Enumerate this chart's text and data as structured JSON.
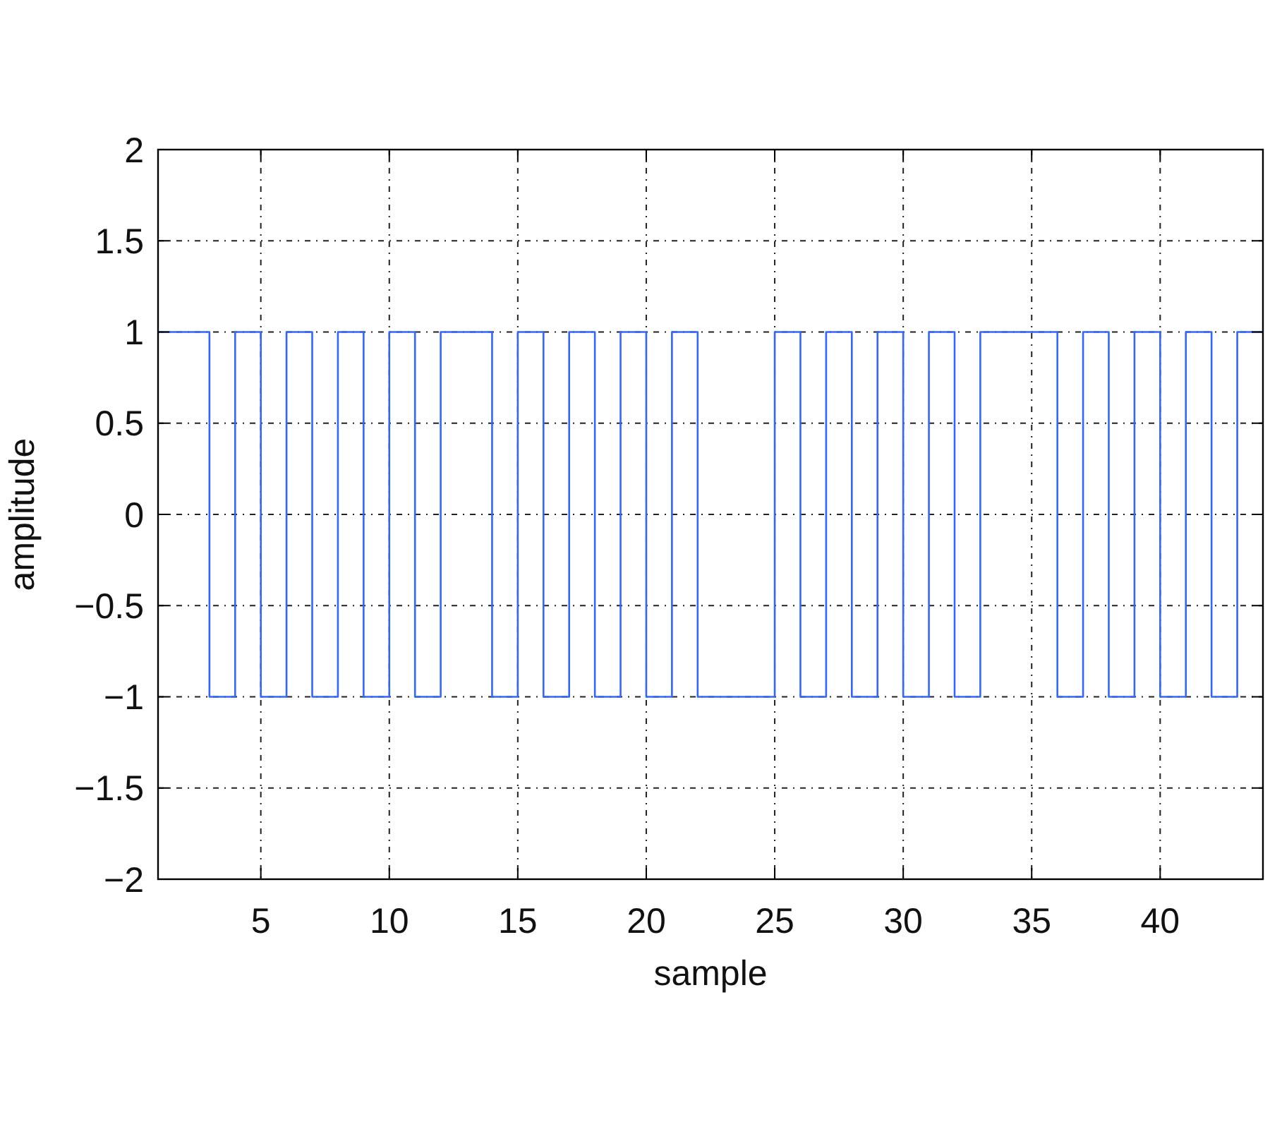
{
  "chart_data": {
    "type": "step",
    "xlabel": "sample",
    "ylabel": "amplitude",
    "x": [
      1,
      2,
      3,
      4,
      5,
      6,
      7,
      8,
      9,
      10,
      11,
      12,
      13,
      14,
      15,
      16,
      17,
      18,
      19,
      20,
      21,
      22,
      23,
      24,
      25,
      26,
      27,
      28,
      29,
      30,
      31,
      32,
      33,
      34,
      35,
      36,
      37,
      38,
      39,
      40,
      41,
      42,
      43,
      44
    ],
    "series": [
      {
        "color": "#3366ff",
        "values": [
          1,
          1,
          -1,
          1,
          -1,
          1,
          -1,
          1,
          -1,
          1,
          -1,
          1,
          1,
          -1,
          1,
          -1,
          1,
          -1,
          1,
          -1,
          1,
          -1,
          -1,
          -1,
          1,
          -1,
          1,
          -1,
          1,
          -1,
          1,
          -1,
          1,
          1,
          1,
          -1,
          1,
          -1,
          1,
          -1,
          1,
          -1,
          1,
          1
        ]
      }
    ],
    "xlim": [
      1,
      44
    ],
    "ylim": [
      -2,
      2
    ],
    "xticks": [
      5,
      10,
      15,
      20,
      25,
      30,
      35,
      40
    ],
    "yticks": [
      {
        "value": -2,
        "label": "−2"
      },
      {
        "value": -1.5,
        "label": "−1.5"
      },
      {
        "value": -1,
        "label": "−1"
      },
      {
        "value": -0.5,
        "label": "−0.5"
      },
      0,
      0.5,
      1,
      1.5,
      2
    ],
    "grid": true
  }
}
